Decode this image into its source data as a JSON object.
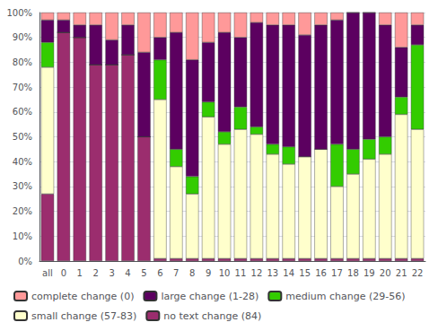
{
  "chart_data": {
    "type": "bar",
    "stacked": true,
    "categories": [
      "all",
      "0",
      "1",
      "2",
      "3",
      "4",
      "5",
      "6",
      "7",
      "8",
      "9",
      "10",
      "11",
      "12",
      "13",
      "14",
      "15",
      "16",
      "17",
      "18",
      "19",
      "20",
      "21",
      "22"
    ],
    "series": [
      {
        "name": "no text change (84)",
        "color": "#9b2d6e",
        "values": [
          27,
          92,
          90,
          79,
          79,
          83,
          50,
          1,
          1,
          1,
          1,
          1,
          1,
          1,
          1,
          1,
          1,
          1,
          1,
          1,
          1,
          1,
          1,
          1
        ]
      },
      {
        "name": "small change (57-83)",
        "color": "#ffffcc",
        "values": [
          51,
          0,
          0,
          0,
          0,
          0,
          0,
          64,
          37,
          26,
          57,
          46,
          52,
          50,
          42,
          38,
          41,
          44,
          29,
          34,
          40,
          42,
          58,
          52
        ]
      },
      {
        "name": "medium change (29-56)",
        "color": "#33cc00",
        "values": [
          10,
          0,
          0,
          0,
          0,
          0,
          0,
          16,
          7,
          7,
          6,
          5,
          9,
          3,
          4,
          7,
          0,
          0,
          17,
          10,
          8,
          7,
          7,
          34
        ]
      },
      {
        "name": "large change (1-28)",
        "color": "#5c0060",
        "values": [
          9,
          5,
          5,
          16,
          10,
          12,
          34,
          9,
          47,
          47,
          24,
          40,
          28,
          42,
          48,
          49,
          49,
          50,
          50,
          55,
          51,
          45,
          20,
          8
        ]
      },
      {
        "name": "complete change (0)",
        "color": "#ff9999",
        "values": [
          3,
          3,
          5,
          5,
          11,
          5,
          16,
          10,
          8,
          19,
          12,
          8,
          10,
          4,
          5,
          5,
          9,
          5,
          3,
          0,
          0,
          5,
          14,
          5
        ]
      }
    ],
    "ylim": [
      0,
      100
    ],
    "yticks": [
      {
        "value": 0,
        "label": "0%"
      },
      {
        "value": 10,
        "label": "10%"
      },
      {
        "value": 20,
        "label": "20%"
      },
      {
        "value": 30,
        "label": "30%"
      },
      {
        "value": 40,
        "label": "40%"
      },
      {
        "value": 50,
        "label": "50%"
      },
      {
        "value": 60,
        "label": "60%"
      },
      {
        "value": 70,
        "label": "70%"
      },
      {
        "value": 80,
        "label": "80%"
      },
      {
        "value": 90,
        "label": "90%"
      },
      {
        "value": 100,
        "label": "100%"
      }
    ],
    "grid": true,
    "legend": "lower left"
  }
}
